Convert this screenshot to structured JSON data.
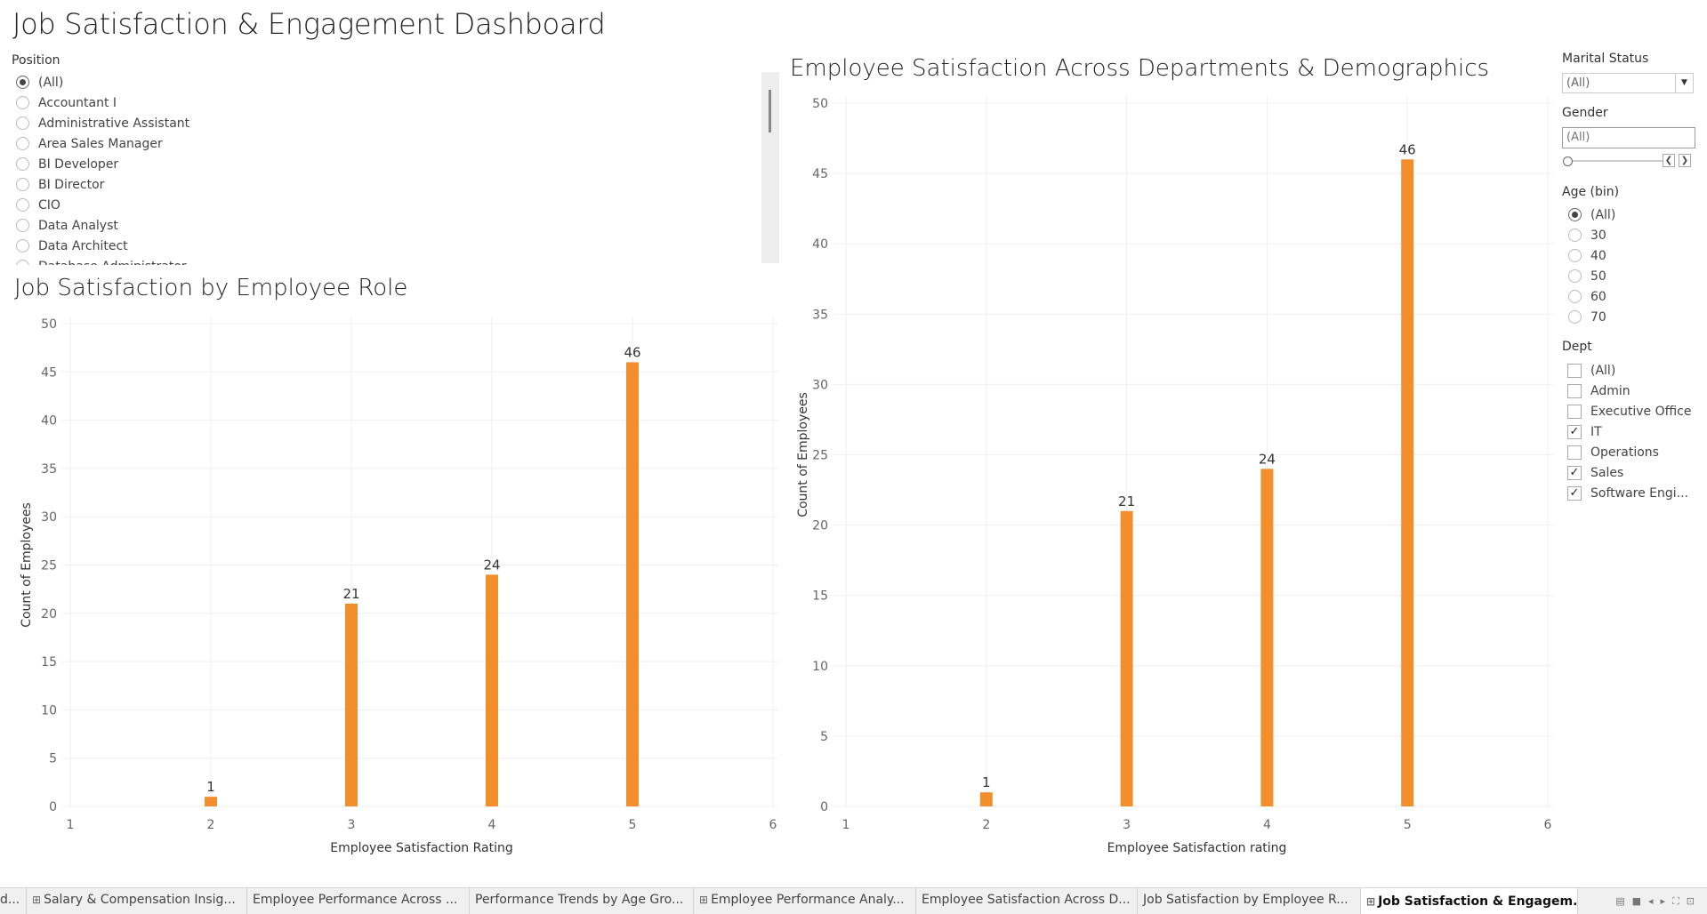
{
  "dashboard_title": "Job Satisfaction & Engagement Dashboard",
  "position_filter": {
    "title": "Position",
    "items": [
      "(All)",
      "Accountant I",
      "Administrative Assistant",
      "Area Sales Manager",
      "BI Developer",
      "BI Director",
      "CIO",
      "Data Analyst",
      "Data Architect",
      "Database Administrator"
    ],
    "selected": "(All)"
  },
  "chart_data": [
    {
      "type": "bar",
      "title": "Job Satisfaction by Employee Role",
      "xlabel": "Employee Satisfaction Rating",
      "ylabel": "Count of Employees",
      "x": [
        2,
        3,
        4,
        5
      ],
      "values": [
        1,
        21,
        24,
        46
      ],
      "data_labels": [
        "1",
        "21",
        "24",
        "46"
      ],
      "xlim": [
        1,
        6
      ],
      "xticks": [
        "1",
        "2",
        "3",
        "4",
        "5",
        "6"
      ],
      "ylim": [
        0,
        50
      ],
      "yticks": [
        "0",
        "5",
        "10",
        "15",
        "20",
        "25",
        "30",
        "35",
        "40",
        "45",
        "50"
      ],
      "bar_color": "#f28e2b",
      "grid": true
    },
    {
      "type": "bar",
      "title": "Employee Satisfaction Across Departments & Demographics",
      "xlabel": "Employee Satisfaction rating",
      "ylabel": "Count of Employees",
      "x": [
        2,
        3,
        4,
        5
      ],
      "values": [
        1,
        21,
        24,
        46
      ],
      "data_labels": [
        "1",
        "21",
        "24",
        "46"
      ],
      "xlim": [
        1,
        6
      ],
      "xticks": [
        "1",
        "2",
        "3",
        "4",
        "5",
        "6"
      ],
      "ylim": [
        0,
        50
      ],
      "yticks": [
        "0",
        "5",
        "10",
        "15",
        "20",
        "25",
        "30",
        "35",
        "40",
        "45",
        "50"
      ],
      "bar_color": "#f28e2b",
      "grid": true
    }
  ],
  "marital_filter": {
    "title": "Marital Status",
    "value": "(All)"
  },
  "gender_filter": {
    "title": "Gender",
    "value": "(All)"
  },
  "age_filter": {
    "title": "Age (bin)",
    "items": [
      "(All)",
      "30",
      "40",
      "50",
      "60",
      "70"
    ],
    "selected": "(All)"
  },
  "dept_filter": {
    "title": "Dept",
    "items": [
      {
        "label": "(All)",
        "checked": false
      },
      {
        "label": "Admin",
        "checked": false
      },
      {
        "label": "Executive Office",
        "checked": false
      },
      {
        "label": "IT",
        "checked": true
      },
      {
        "label": "Operations",
        "checked": false
      },
      {
        "label": "Sales",
        "checked": true
      },
      {
        "label": "Software Engi...",
        "checked": true
      }
    ]
  },
  "tabs": [
    {
      "label": "d...",
      "icon": false,
      "active": false
    },
    {
      "label": "Salary & Compensation Insig...",
      "icon": true,
      "active": false
    },
    {
      "label": "Employee Performance Across ...",
      "icon": false,
      "active": false
    },
    {
      "label": "Performance Trends by Age Gro...",
      "icon": false,
      "active": false
    },
    {
      "label": "Employee Performance Analy...",
      "icon": true,
      "active": false
    },
    {
      "label": "Employee Satisfaction Across D...",
      "icon": false,
      "active": false
    },
    {
      "label": "Job Satisfaction by Employee R...",
      "icon": false,
      "active": false
    },
    {
      "label": "Job Satisfaction & Engagem...",
      "icon": true,
      "active": true
    }
  ]
}
